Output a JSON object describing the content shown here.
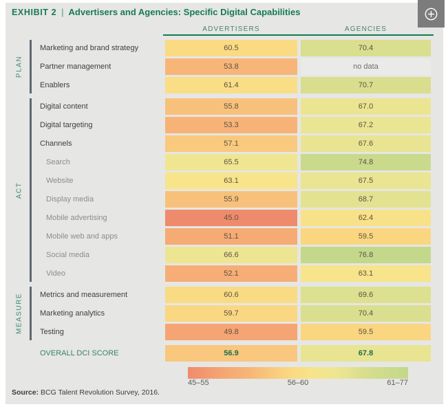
{
  "title": {
    "exhibit": "EXHIBIT 2",
    "separator": "|",
    "text": "Advertisers and Agencies: Specific Digital Capabilities"
  },
  "colors": {
    "brand_green": "#17795A",
    "panel_background": "#E6E6E4",
    "section_bar": "#5C6872"
  },
  "chart_data": {
    "type": "heatmap",
    "columns": [
      "ADVERTISERS",
      "AGENCIES"
    ],
    "value_range": [
      45,
      77
    ],
    "palette": [
      [
        45,
        "#EF8B6D"
      ],
      [
        50,
        "#F5A673"
      ],
      [
        54,
        "#F7B678"
      ],
      [
        57,
        "#F9C87D"
      ],
      [
        60,
        "#FAD982"
      ],
      [
        63,
        "#F7E48B"
      ],
      [
        66,
        "#EFE692"
      ],
      [
        68,
        "#E7E492"
      ],
      [
        70,
        "#DBDF8E"
      ],
      [
        73,
        "#CFDC8C"
      ],
      [
        77,
        "#C3D88B"
      ]
    ],
    "sections": [
      {
        "name": "PLAN",
        "rows": [
          {
            "label": "Marketing and brand strategy",
            "indent": false,
            "advertisers": "60.5",
            "agencies": "70.4"
          },
          {
            "label": "Partner management",
            "indent": false,
            "advertisers": "53.8",
            "agencies": "no data"
          },
          {
            "label": "Enablers",
            "indent": false,
            "advertisers": "61.4",
            "agencies": "70.7"
          }
        ]
      },
      {
        "name": "ACT",
        "rows": [
          {
            "label": "Digital content",
            "indent": false,
            "advertisers": "55.8",
            "agencies": "67.0"
          },
          {
            "label": "Digital targeting",
            "indent": false,
            "advertisers": "53.3",
            "agencies": "67.2"
          },
          {
            "label": "Channels",
            "indent": false,
            "advertisers": "57.1",
            "agencies": "67.6"
          },
          {
            "label": "Search",
            "indent": true,
            "advertisers": "65.5",
            "agencies": "74.8"
          },
          {
            "label": "Website",
            "indent": true,
            "advertisers": "63.1",
            "agencies": "67.5"
          },
          {
            "label": "Display media",
            "indent": true,
            "advertisers": "55.9",
            "agencies": "68.7"
          },
          {
            "label": "Mobile advertising",
            "indent": true,
            "advertisers": "45.0",
            "agencies": "62.4"
          },
          {
            "label": "Mobile web and apps",
            "indent": true,
            "advertisers": "51.1",
            "agencies": "59.5"
          },
          {
            "label": "Social media",
            "indent": true,
            "advertisers": "66.6",
            "agencies": "76.8"
          },
          {
            "label": "Video",
            "indent": true,
            "advertisers": "52.1",
            "agencies": "63.1"
          }
        ]
      },
      {
        "name": "MEASURE",
        "rows": [
          {
            "label": "Metrics and measurement",
            "indent": false,
            "advertisers": "60.6",
            "agencies": "69.6"
          },
          {
            "label": "Marketing analytics",
            "indent": false,
            "advertisers": "59.7",
            "agencies": "70.4"
          },
          {
            "label": "Testing",
            "indent": false,
            "advertisers": "49.8",
            "agencies": "59.5"
          }
        ]
      }
    ],
    "overall": {
      "label": "OVERALL DCI SCORE",
      "advertisers": "56.9",
      "agencies": "67.8"
    },
    "legend": {
      "ranges": [
        "45–55",
        "56–60",
        "61–77"
      ]
    }
  },
  "source": {
    "label": "Source:",
    "text": " BCG Talent Revolution Survey, 2016."
  }
}
